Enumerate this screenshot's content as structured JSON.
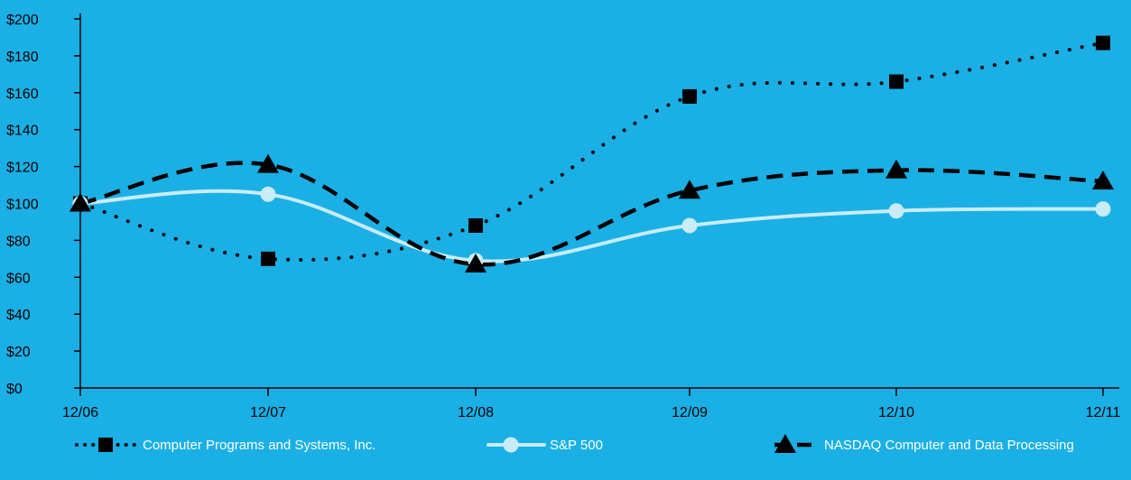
{
  "chart_data": {
    "type": "line",
    "x": [
      "12/06",
      "12/07",
      "12/08",
      "12/09",
      "12/10",
      "12/11"
    ],
    "ylim": [
      0,
      200
    ],
    "yticks": [
      0,
      20,
      40,
      60,
      80,
      100,
      120,
      140,
      160,
      180,
      200
    ],
    "ytick_labels": [
      "$0",
      "$20",
      "$40",
      "$60",
      "$80",
      "$100",
      "$120",
      "$140",
      "$160",
      "$180",
      "$200"
    ],
    "grid": false,
    "legend_position": "bottom",
    "series": [
      {
        "name": "Computer Programs and Systems, Inc.",
        "values": [
          100,
          70,
          88,
          158,
          166,
          187
        ],
        "color": "#000000",
        "line_style": "dotted",
        "marker": "square",
        "smooth": true
      },
      {
        "name": "S&P 500",
        "values": [
          100,
          105,
          69,
          88,
          96,
          97
        ],
        "color": "#c8ecf8",
        "line_style": "solid",
        "marker": "circle",
        "smooth": true
      },
      {
        "name": "NASDAQ Computer and Data Processing",
        "values": [
          100,
          121,
          67,
          107,
          118,
          112
        ],
        "color": "#000000",
        "line_style": "dashed",
        "marker": "triangle",
        "smooth": true
      }
    ]
  }
}
